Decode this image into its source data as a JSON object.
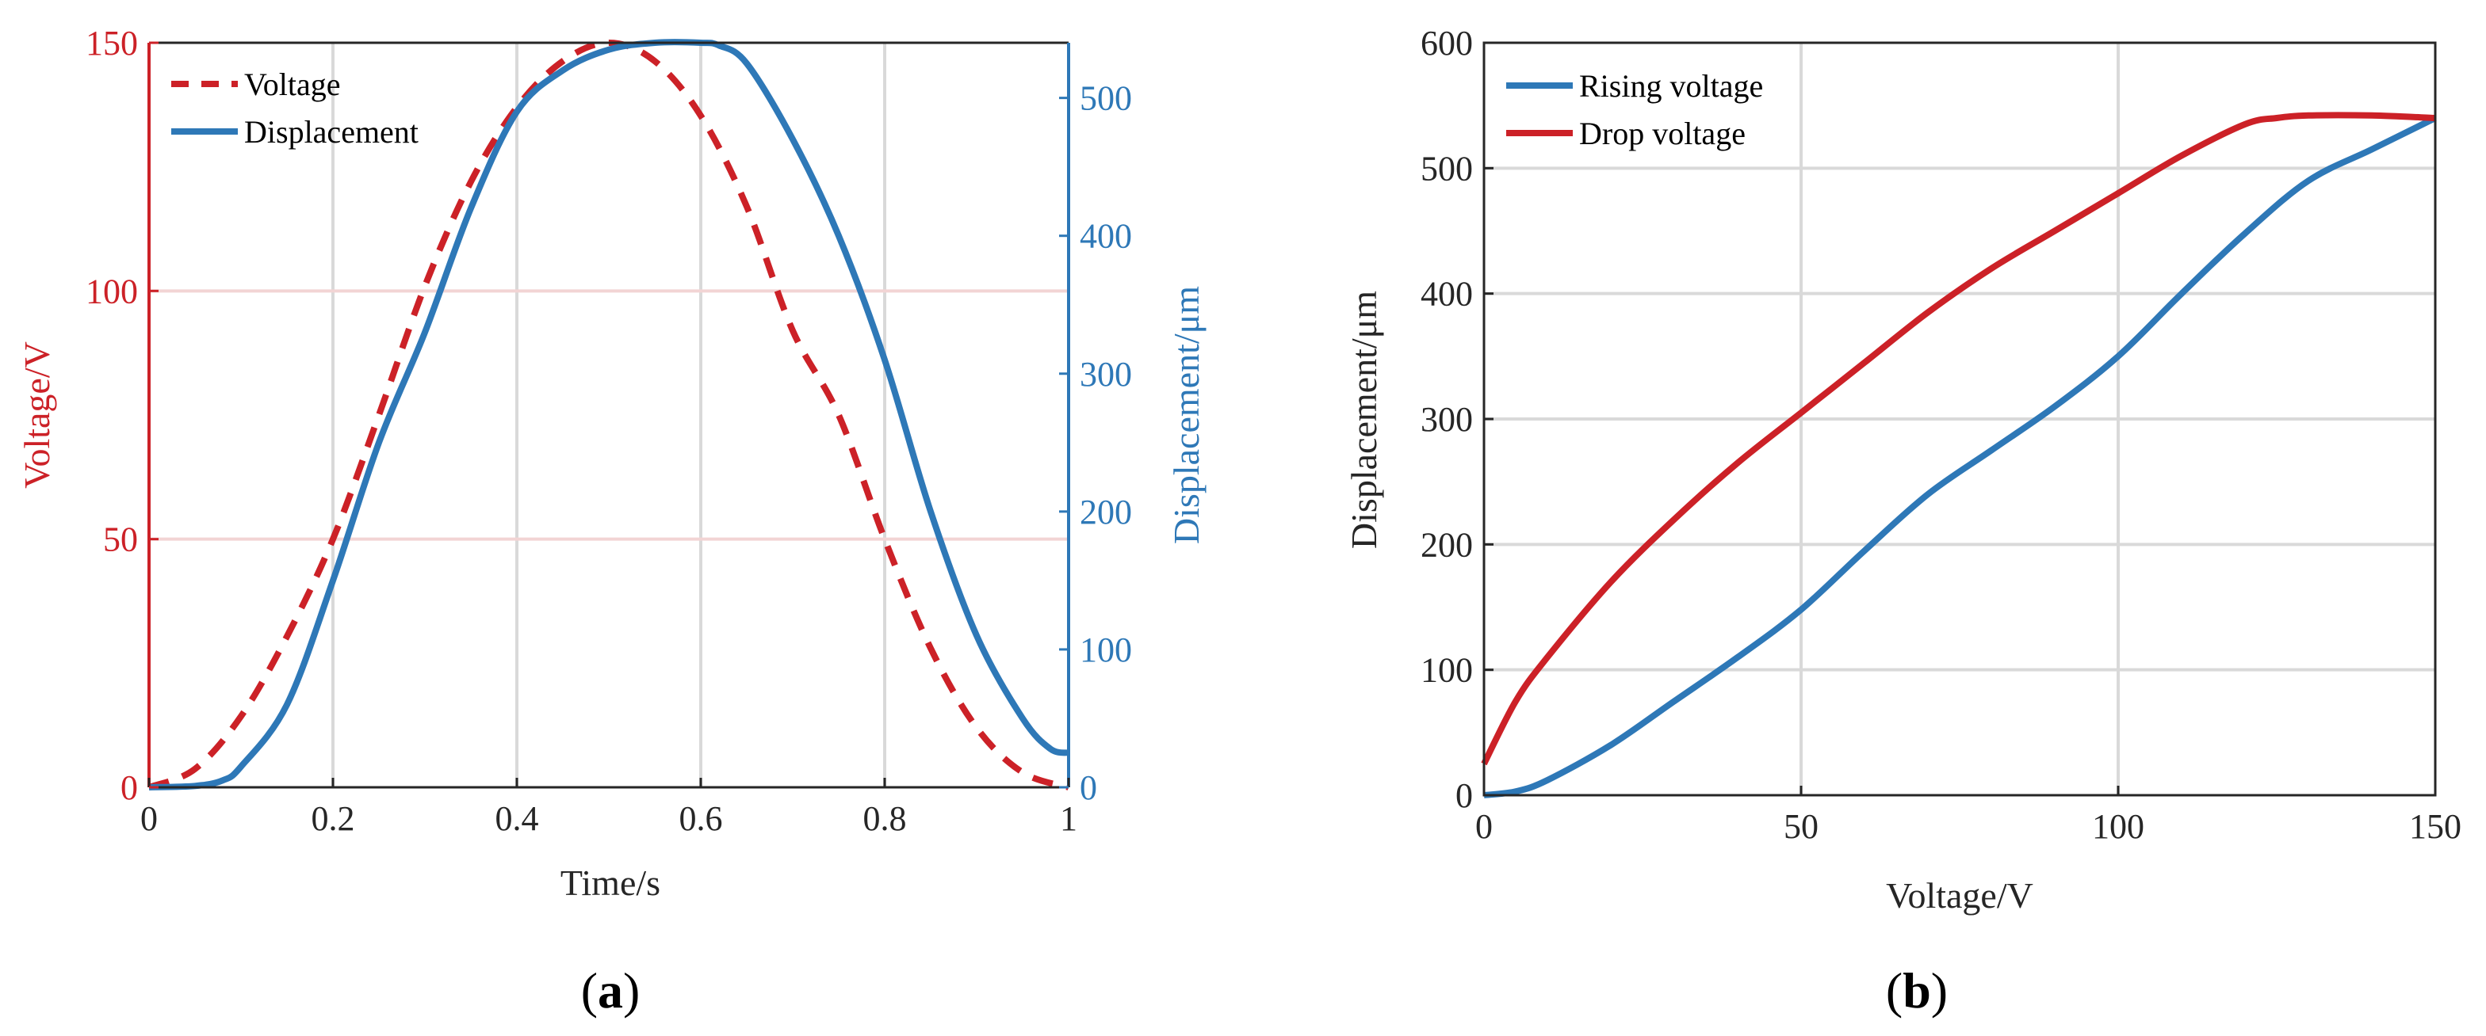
{
  "chart_data": [
    {
      "type": "line",
      "panel_label": "(a)",
      "panel_label_parts": {
        "open": "(",
        "letter": "a",
        "close": ")"
      },
      "xlabel": "Time/s",
      "ylabel_left": "Voltage/V",
      "ylabel_right": "Displacement/μm",
      "xlim": [
        0,
        1
      ],
      "ylim_left": [
        0,
        150
      ],
      "ylim_right": [
        0,
        540
      ],
      "x_ticks": [
        0,
        0.2,
        0.4,
        0.6,
        0.8,
        1
      ],
      "x_tick_labels": [
        "0",
        "0.2",
        "0.4",
        "0.6",
        "0.8",
        "1"
      ],
      "y_left_ticks": [
        0,
        50,
        100,
        150
      ],
      "y_left_tick_labels": [
        "0",
        "50",
        "100",
        "150"
      ],
      "y_right_ticks": [
        0,
        100,
        200,
        300,
        400,
        500
      ],
      "y_right_tick_labels": [
        "0",
        "100",
        "200",
        "300",
        "400",
        "500"
      ],
      "grid": true,
      "legend_position": "top-left",
      "colors": {
        "voltage": "#cc2127",
        "displacement": "#2e78b7",
        "grid_left": "#f2d4d4",
        "grid_x": "#d9d9d9"
      },
      "series": [
        {
          "name": "Voltage",
          "axis": "left",
          "style": "dashed",
          "color": "#cc2127",
          "x": [
            0,
            0.05,
            0.1,
            0.15,
            0.2,
            0.25,
            0.3,
            0.35,
            0.4,
            0.45,
            0.5,
            0.55,
            0.6,
            0.65,
            0.7,
            0.75,
            0.8,
            0.85,
            0.9,
            0.95,
            1.0
          ],
          "values": [
            0,
            3.7,
            14.3,
            30.4,
            50.0,
            75.0,
            101.0,
            122.0,
            137.0,
            146.3,
            150.0,
            146.3,
            135.3,
            117.0,
            92.0,
            75.0,
            50.0,
            28.0,
            12.0,
            3.0,
            0
          ]
        },
        {
          "name": "Displacement",
          "axis": "right",
          "style": "solid",
          "color": "#2e78b7",
          "x": [
            0,
            0.05,
            0.08,
            0.1,
            0.15,
            0.2,
            0.25,
            0.3,
            0.35,
            0.4,
            0.45,
            0.5,
            0.55,
            0.6,
            0.62,
            0.65,
            0.7,
            0.75,
            0.8,
            0.85,
            0.9,
            0.95,
            0.98,
            1.0
          ],
          "values": [
            0,
            1,
            5,
            15,
            60,
            150,
            250,
            330,
            420,
            490,
            520,
            535,
            540,
            540,
            538,
            525,
            470,
            400,
            310,
            200,
            110,
            50,
            28,
            25
          ]
        }
      ]
    },
    {
      "type": "line",
      "panel_label": "(b)",
      "panel_label_parts": {
        "open": "(",
        "letter": "b",
        "close": ")"
      },
      "xlabel": "Voltage/V",
      "ylabel": "Displacement/μm",
      "xlim": [
        0,
        150
      ],
      "ylim": [
        0,
        600
      ],
      "x_ticks": [
        0,
        50,
        100,
        150
      ],
      "x_tick_labels": [
        "0",
        "50",
        "100",
        "150"
      ],
      "y_ticks": [
        0,
        100,
        200,
        300,
        400,
        500,
        600
      ],
      "y_tick_labels": [
        "0",
        "100",
        "200",
        "300",
        "400",
        "500",
        "600"
      ],
      "grid": true,
      "legend_position": "top-left",
      "colors": {
        "grid": "#d9d9d9"
      },
      "series": [
        {
          "name": "Rising voltage",
          "style": "solid",
          "color": "#2e78b7",
          "x": [
            0,
            5,
            10,
            20,
            30,
            40,
            50,
            60,
            70,
            80,
            90,
            100,
            110,
            120,
            130,
            140,
            150
          ],
          "values": [
            0,
            3,
            12,
            40,
            75,
            110,
            148,
            195,
            240,
            275,
            310,
            350,
            400,
            448,
            490,
            515,
            540
          ]
        },
        {
          "name": "Drop voltage",
          "style": "solid",
          "color": "#cc2127",
          "x": [
            0,
            5,
            10,
            20,
            30,
            40,
            50,
            60,
            70,
            80,
            90,
            100,
            110,
            120,
            125,
            130,
            140,
            150
          ],
          "values": [
            25,
            75,
            110,
            170,
            220,
            265,
            305,
            345,
            385,
            420,
            450,
            480,
            510,
            535,
            540,
            542,
            542,
            540
          ]
        }
      ]
    }
  ]
}
